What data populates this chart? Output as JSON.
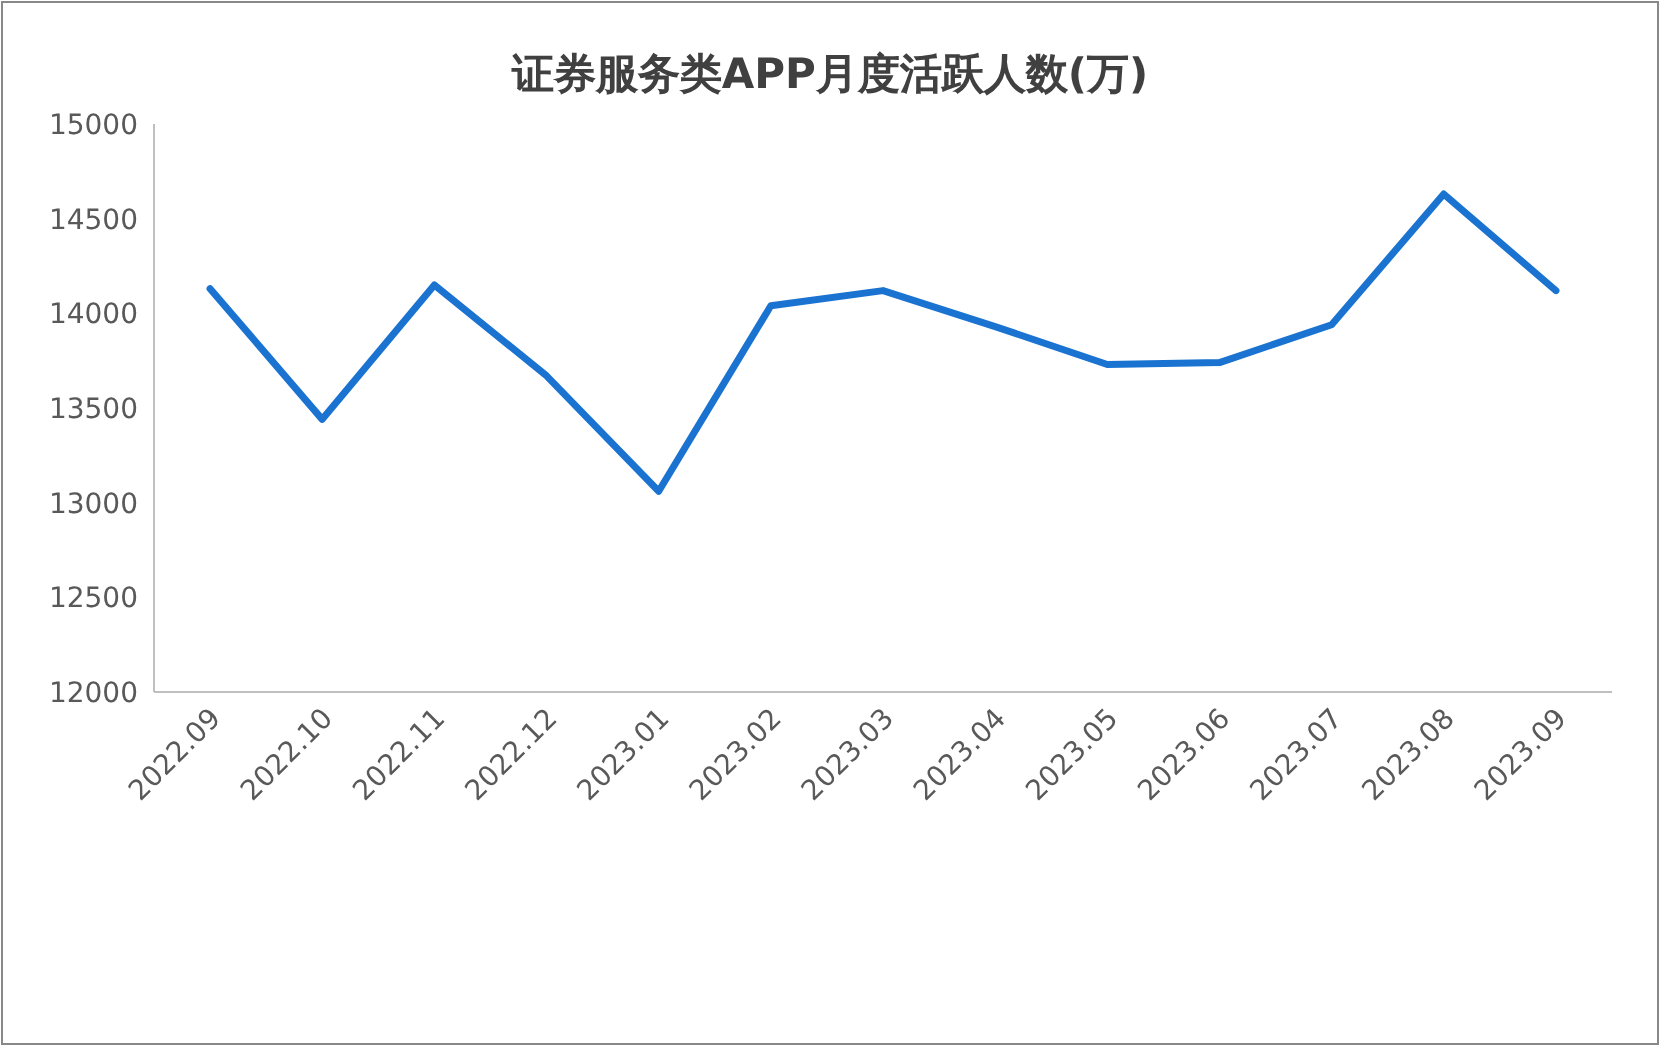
{
  "chart_data": {
    "type": "line",
    "title": "证券服务类APP月度活跃人数(万)",
    "categories": [
      "2022.09",
      "2022.10",
      "2022.11",
      "2022.12",
      "2023.01",
      "2023.02",
      "2023.03",
      "2023.04",
      "2023.05",
      "2023.06",
      "2023.07",
      "2023.08",
      "2023.09"
    ],
    "series": [
      {
        "color": "#1a73d0",
        "values": [
          14130,
          13440,
          14150,
          13670,
          13060,
          14040,
          14120,
          13930,
          13730,
          13740,
          13940,
          14630,
          14120
        ]
      }
    ],
    "ylim": [
      12000,
      15000
    ],
    "yticks": [
      12000,
      12500,
      13000,
      13500,
      14000,
      14500,
      15000
    ],
    "grid": false,
    "marker": "none",
    "line_style": "solid"
  }
}
